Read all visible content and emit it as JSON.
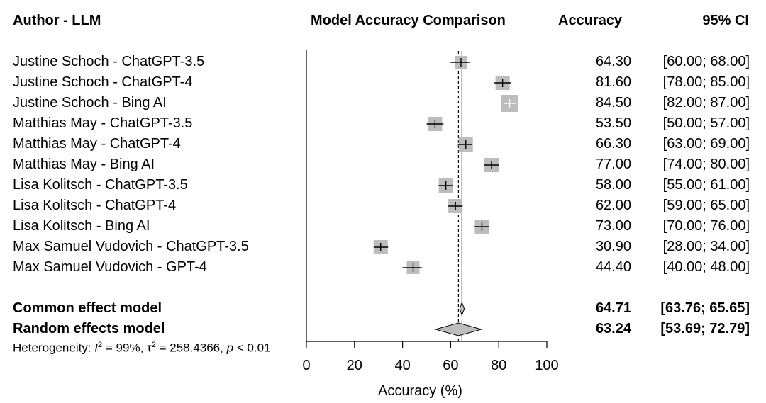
{
  "headers": {
    "study": "Author - LLM",
    "plot": "Model Accuracy Comparison",
    "accuracy": "Accuracy",
    "ci": "95% CI"
  },
  "chart_data": {
    "type": "forest",
    "xlabel": "Accuracy (%)",
    "xlim": [
      0,
      100
    ],
    "xticks": [
      "0",
      "20",
      "40",
      "60",
      "80",
      "100"
    ],
    "tick_values": [
      0,
      20,
      40,
      60,
      80,
      100
    ],
    "studies": [
      {
        "label": "Justine Schoch - ChatGPT-3.5",
        "value": 64.3,
        "lower": 60.0,
        "upper": 68.0,
        "accuracy": "64.30",
        "ci": "[60.00; 68.00]",
        "weight_box": 18
      },
      {
        "label": "Justine Schoch - ChatGPT-4",
        "value": 81.6,
        "lower": 78.0,
        "upper": 85.0,
        "accuracy": "81.60",
        "ci": "[78.00; 85.00]",
        "weight_box": 20
      },
      {
        "label": "Justine Schoch - Bing AI",
        "value": 84.5,
        "lower": 82.0,
        "upper": 87.0,
        "accuracy": "84.50",
        "ci": "[82.00; 87.00]",
        "weight_box": 24
      },
      {
        "label": "Matthias May - ChatGPT-3.5",
        "value": 53.5,
        "lower": 50.0,
        "upper": 57.0,
        "accuracy": "53.50",
        "ci": "[50.00; 57.00]",
        "weight_box": 20
      },
      {
        "label": "Matthias May - ChatGPT-4",
        "value": 66.3,
        "lower": 63.0,
        "upper": 69.0,
        "accuracy": "66.30",
        "ci": "[63.00; 69.00]",
        "weight_box": 20
      },
      {
        "label": "Matthias May - Bing AI",
        "value": 77.0,
        "lower": 74.0,
        "upper": 80.0,
        "accuracy": "77.00",
        "ci": "[74.00; 80.00]",
        "weight_box": 20
      },
      {
        "label": "Lisa Kolitsch - ChatGPT-3.5",
        "value": 58.0,
        "lower": 55.0,
        "upper": 61.0,
        "accuracy": "58.00",
        "ci": "[55.00; 61.00]",
        "weight_box": 20
      },
      {
        "label": "Lisa Kolitsch - ChatGPT-4",
        "value": 62.0,
        "lower": 59.0,
        "upper": 65.0,
        "accuracy": "62.00",
        "ci": "[59.00; 65.00]",
        "weight_box": 20
      },
      {
        "label": "Lisa Kolitsch - Bing AI",
        "value": 73.0,
        "lower": 70.0,
        "upper": 76.0,
        "accuracy": "73.00",
        "ci": "[70.00; 76.00]",
        "weight_box": 20
      },
      {
        "label": "Max Samuel Vudovich - ChatGPT-3.5",
        "value": 30.9,
        "lower": 28.0,
        "upper": 34.0,
        "accuracy": "30.90",
        "ci": "[28.00; 34.00]",
        "weight_box": 20
      },
      {
        "label": "Max Samuel Vudovich - GPT-4",
        "value": 44.4,
        "lower": 40.0,
        "upper": 48.0,
        "accuracy": "44.40",
        "ci": "[40.00; 48.00]",
        "weight_box": 18
      }
    ],
    "summary": [
      {
        "label": "Common effect model",
        "value": 64.71,
        "lower": 63.76,
        "upper": 65.65,
        "accuracy": "64.71",
        "ci": "[63.76; 65.65]"
      },
      {
        "label": "Random effects model",
        "value": 63.24,
        "lower": 53.69,
        "upper": 72.79,
        "accuracy": "63.24",
        "ci": "[53.69; 72.79]"
      }
    ],
    "heterogeneity": {
      "prefix": "Heterogeneity: ",
      "i2": "99%",
      "tau2": "258.4366",
      "p": "< 0.01"
    },
    "box_color": "#bdbdbd",
    "diamond_color": "#bdbdbd"
  }
}
